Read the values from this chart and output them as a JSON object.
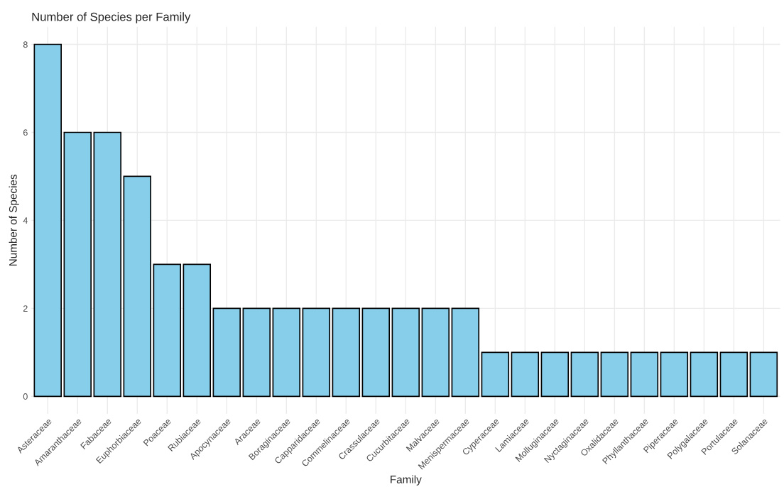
{
  "chart_data": {
    "type": "bar",
    "title": "Number of Species per Family",
    "xlabel": "Family",
    "ylabel": "Number of Species",
    "categories": [
      "Asteraceae",
      "Amaranthaceae",
      "Fabaceae",
      "Euphorbiaceae",
      "Poaceae",
      "Rubiaceae",
      "Apocynaceae",
      "Araceae",
      "Boraginaceae",
      "Capparidaceae",
      "Commelinaceae",
      "Crassulaceae",
      "Cucurbitaceae",
      "Malvaceae",
      "Menispermaceae",
      "Cyperaceae",
      "Lamiaceae",
      "Molluginaceae",
      "Nyctaginaceae",
      "Oxalidaceae",
      "Phyllanthaceae",
      "Piperaceae",
      "Polygalaceae",
      "Portulaceae",
      "Solanaceae"
    ],
    "values": [
      8,
      6,
      6,
      5,
      3,
      3,
      2,
      2,
      2,
      2,
      2,
      2,
      2,
      2,
      2,
      1,
      1,
      1,
      1,
      1,
      1,
      1,
      1,
      1,
      1
    ],
    "color": "#87ceeb",
    "ylim": [
      -0.4,
      8.4
    ],
    "yticks": [
      0,
      2,
      4,
      6,
      8
    ],
    "grid": true,
    "legend": false
  }
}
